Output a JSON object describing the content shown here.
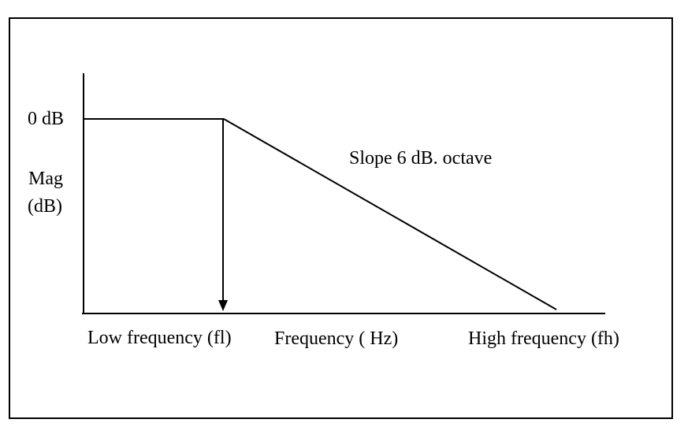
{
  "diagram": {
    "y_axis_label_0db": "0 dB",
    "y_axis_label_mag": "Mag",
    "y_axis_label_unit": "(dB)",
    "slope_label": "Slope 6 dB. octave",
    "x_label_low": "Low frequency (fl)",
    "x_label_axis": "Frequency ( Hz)",
    "x_label_high": "High frequency (fh)",
    "line_color": "#000000"
  }
}
